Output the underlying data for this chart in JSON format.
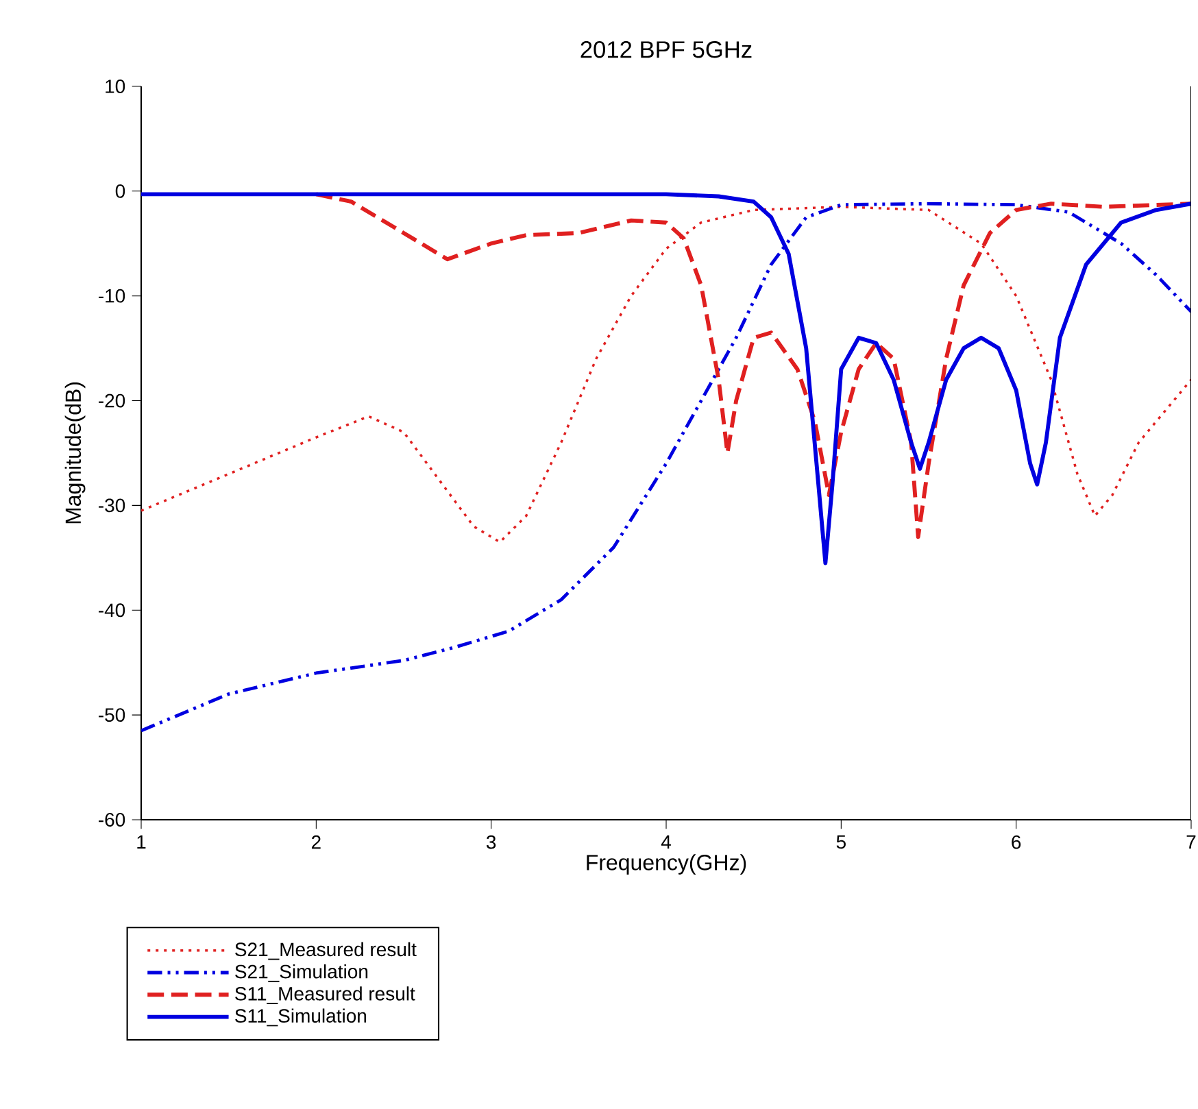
{
  "chart_data": {
    "type": "line",
    "title": "2012 BPF 5GHz",
    "xlabel": "Frequency(GHz)",
    "ylabel": "Magnitude(dB)",
    "xlim": [
      1,
      7
    ],
    "xticks": [
      1,
      2,
      3,
      4,
      5,
      6,
      7
    ],
    "ylim": [
      -60,
      10
    ],
    "yticks": [
      -60,
      -50,
      -40,
      -30,
      -20,
      -10,
      0,
      10
    ],
    "grid": false,
    "legend": "bottom left",
    "series": [
      {
        "name": "S21_Measured result",
        "color": "#e02020",
        "line_style": "dotted",
        "x": [
          1,
          1.5,
          2,
          2.3,
          2.5,
          2.7,
          2.9,
          3.05,
          3.2,
          3.4,
          3.6,
          3.8,
          4.0,
          4.2,
          4.5,
          5.0,
          5.5,
          5.8,
          6.0,
          6.2,
          6.35,
          6.45,
          6.55,
          6.7,
          6.85,
          7
        ],
        "values": [
          -30.5,
          -27,
          -23.5,
          -21.5,
          -23,
          -27.5,
          -32,
          -33.5,
          -31,
          -24,
          -16,
          -10,
          -5.5,
          -3,
          -1.8,
          -1.5,
          -1.8,
          -5,
          -10,
          -18,
          -27,
          -31,
          -29,
          -24,
          -21,
          -18
        ]
      },
      {
        "name": "S21_Simulation",
        "color": "#0000e0",
        "line_style": "dashdotdot",
        "x": [
          1,
          1.5,
          2,
          2.5,
          2.8,
          3.1,
          3.4,
          3.7,
          4.0,
          4.2,
          4.4,
          4.6,
          4.8,
          5.0,
          5.5,
          6.0,
          6.3,
          6.6,
          6.8,
          7
        ],
        "values": [
          -51.5,
          -48,
          -46,
          -44.8,
          -43.5,
          -42,
          -39,
          -34,
          -26,
          -20,
          -14,
          -7,
          -2.5,
          -1.3,
          -1.2,
          -1.3,
          -2,
          -5,
          -8,
          -11.5
        ]
      },
      {
        "name": "S11_Measured result",
        "color": "#e02020",
        "line_style": "dashed",
        "x": [
          2.0,
          2.2,
          2.5,
          2.75,
          3.0,
          3.2,
          3.5,
          3.8,
          4.0,
          4.1,
          4.2,
          4.3,
          4.35,
          4.4,
          4.5,
          4.6,
          4.75,
          4.85,
          4.93,
          5.0,
          5.1,
          5.2,
          5.3,
          5.4,
          5.44,
          5.5,
          5.6,
          5.7,
          5.85,
          6.0,
          6.2,
          6.5,
          7
        ],
        "values": [
          -0.3,
          -1,
          -4,
          -6.5,
          -5,
          -4.2,
          -4,
          -2.8,
          -3,
          -4.5,
          -9,
          -18,
          -25,
          -20,
          -14,
          -13.5,
          -17,
          -22,
          -29,
          -23,
          -17,
          -14.5,
          -16,
          -24,
          -33,
          -26,
          -16,
          -9,
          -4,
          -1.8,
          -1.2,
          -1.5,
          -1.2
        ]
      },
      {
        "name": "S11_Simulation",
        "color": "#0000e0",
        "line_style": "solid",
        "x": [
          1,
          4.0,
          4.3,
          4.5,
          4.6,
          4.7,
          4.8,
          4.87,
          4.91,
          4.95,
          5.0,
          5.1,
          5.2,
          5.3,
          5.4,
          5.45,
          5.5,
          5.6,
          5.7,
          5.8,
          5.9,
          6.0,
          6.08,
          6.12,
          6.17,
          6.25,
          6.4,
          6.6,
          6.8,
          7
        ],
        "values": [
          -0.3,
          -0.3,
          -0.5,
          -1,
          -2.5,
          -6,
          -15,
          -28,
          -35.5,
          -28,
          -17,
          -14,
          -14.5,
          -18,
          -24,
          -26.5,
          -24,
          -18,
          -15,
          -14,
          -15,
          -19,
          -26,
          -28,
          -24,
          -14,
          -7,
          -3,
          -1.8,
          -1.2
        ]
      }
    ]
  }
}
